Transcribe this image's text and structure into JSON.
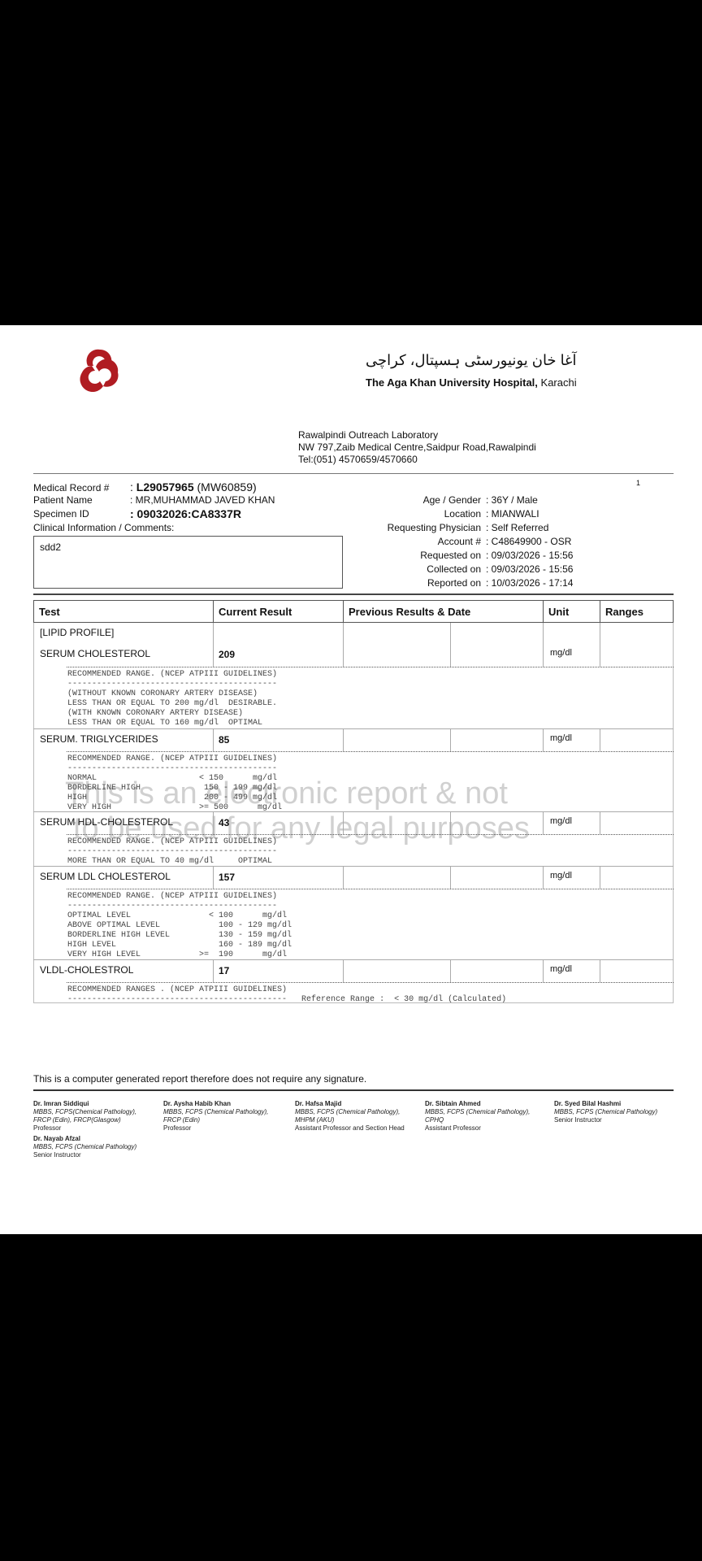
{
  "header": {
    "hospital_urdu": "آغا خان یونیورسٹی ہسپتال، کراچی",
    "hospital_name": "The Aga Khan University Hospital,",
    "hospital_city": "Karachi",
    "brand_color": "#b01c22",
    "lab_name": "Rawalpindi Outreach Laboratory",
    "lab_address": "NW 797,Zaib Medical Centre,Saidpur Road,Rawalpindi",
    "lab_tel": "Tel:(051) 4570659/4570660",
    "page_number": "1"
  },
  "patient": {
    "mr_label": "Medical Record #",
    "mr_value": "L29057965",
    "mr_alt": "(MW60859)",
    "name_label": "Patient Name",
    "name_value": ": MR,MUHAMMAD JAVED KHAN",
    "specimen_label": "Specimen ID",
    "specimen_value": ": 09032026:CA8337R",
    "clinical_label": "Clinical Information / Comments:",
    "comments": "sdd2",
    "right": [
      {
        "label": "Age / Gender",
        "value": ": 36Y /  Male"
      },
      {
        "label": "Location",
        "value": ": MIANWALI"
      },
      {
        "label": "Requesting Physician",
        "value": ": Self Referred"
      },
      {
        "label": "Account #",
        "value": ": C48649900 - OSR"
      },
      {
        "label": "Requested on",
        "value": ": 09/03/2026 - 15:56"
      },
      {
        "label": "Collected on",
        "value": ": 09/03/2026 - 15:56"
      },
      {
        "label": "Reported on",
        "value": ": 10/03/2026 - 17:14"
      }
    ]
  },
  "table": {
    "headers": [
      "Test",
      "Current Result",
      "Previous Results & Date",
      "Unit",
      "Ranges"
    ],
    "section": "[LIPID PROFILE]",
    "rows": [
      {
        "test": "SERUM CHOLESTEROL",
        "result": "209",
        "unit": "mg/dl",
        "notes": "RECOMMENDED RANGE. (NCEP ATPIII GUIDELINES)\n-------------------------------------------\n(WITHOUT KNOWN CORONARY ARTERY DISEASE)\nLESS THAN OR EQUAL TO 200 mg/dl  DESIRABLE.\n(WITH KNOWN CORONARY ARTERY DISEASE)\nLESS THAN OR EQUAL TO 160 mg/dl  OPTIMAL"
      },
      {
        "test": "SERUM. TRIGLYCERIDES",
        "result": "85",
        "unit": "mg/dl",
        "notes": "RECOMMENDED RANGE. (NCEP ATPIII GUIDELINES)\n-------------------------------------------\nNORMAL                     < 150      mg/dl\nBORDERLINE HIGH             150 - 199 mg/dl\nHIGH                        200 - 499 mg/dl\nVERY HIGH                  >= 500      mg/dl"
      },
      {
        "test": "SERUM HDL-CHOLESTEROL",
        "result": "43",
        "unit": "mg/dl",
        "notes": "RECOMMENDED RANGE. (NCEP ATPIII GUIDELINES)\n-------------------------------------------\nMORE THAN OR EQUAL TO 40 mg/dl     OPTIMAL"
      },
      {
        "test": "SERUM LDL CHOLESTEROL",
        "result": "157",
        "unit": "mg/dl",
        "notes": "RECOMMENDED RANGE. (NCEP ATPIII GUIDELINES)\n-------------------------------------------\nOPTIMAL LEVEL                < 100      mg/dl\nABOVE OPTIMAL LEVEL            100 - 129 mg/dl\nBORDERLINE HIGH LEVEL          130 - 159 mg/dl\nHIGH LEVEL                     160 - 189 mg/dl\nVERY HIGH LEVEL            >=  190      mg/dl"
      },
      {
        "test": "VLDL-CHOLESTROL",
        "result": "17",
        "unit": "mg/dl",
        "notes": "RECOMMENDED RANGES . (NCEP ATPIII GUIDELINES)\n---------------------------------------------   Reference Range :  < 30 mg/dl (Calculated)"
      }
    ]
  },
  "watermark": [
    "This is an electronic report & not",
    "to be used for any legal purposes"
  ],
  "footer": {
    "note": "This is a computer generated report therefore does not require any signature.",
    "doctors": [
      {
        "name": "Dr. Imran Siddiqui",
        "quals": [
          "MBBS, FCPS(Chemical Pathology),",
          "FRCP (Edin), FRCP(Glasgow)"
        ],
        "title": "Professor"
      },
      {
        "name": "Dr. Aysha Habib Khan",
        "quals": [
          "MBBS, FCPS (Chemical Pathology),",
          "FRCP (Edin)"
        ],
        "title": "Professor"
      },
      {
        "name": "Dr. Hafsa Majid",
        "quals": [
          "MBBS, FCPS (Chemical Pathology),",
          "MHPM (AKU)"
        ],
        "title": "Assistant Professor and Section Head"
      },
      {
        "name": "Dr. Sibtain Ahmed",
        "quals": [
          "MBBS, FCPS (Chemical Pathology),",
          "CPHQ"
        ],
        "title": "Assistant Professor"
      },
      {
        "name": "Dr. Syed Bilal Hashmi",
        "quals": [
          "MBBS, FCPS (Chemical Pathology)"
        ],
        "title": "Senior Instructor"
      },
      {
        "name": "Dr. Nayab Afzal",
        "quals": [
          "MBBS, FCPS (Chemical Pathology)"
        ],
        "title": "Senior Instructor"
      }
    ]
  }
}
